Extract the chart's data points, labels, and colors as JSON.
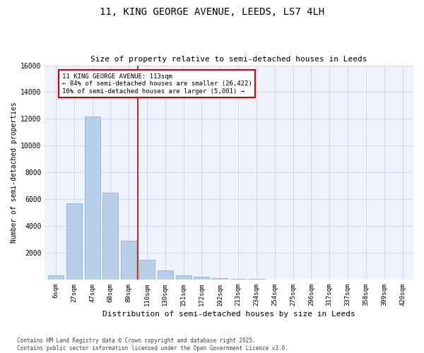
{
  "title_line1": "11, KING GEORGE AVENUE, LEEDS, LS7 4LH",
  "title_line2": "Size of property relative to semi-detached houses in Leeds",
  "xlabel": "Distribution of semi-detached houses by size in Leeds",
  "ylabel": "Number of semi-detached properties",
  "categories": [
    "6sqm",
    "27sqm",
    "47sqm",
    "68sqm",
    "89sqm",
    "110sqm",
    "130sqm",
    "151sqm",
    "172sqm",
    "192sqm",
    "213sqm",
    "234sqm",
    "254sqm",
    "275sqm",
    "296sqm",
    "317sqm",
    "337sqm",
    "358sqm",
    "399sqm",
    "420sqm"
  ],
  "values": [
    300,
    5700,
    12200,
    6500,
    2900,
    1500,
    700,
    300,
    200,
    100,
    50,
    30,
    10,
    5,
    2,
    0,
    0,
    0,
    0,
    0
  ],
  "bar_color": "#b8cfe8",
  "bar_edge_color": "#7aa8d0",
  "vline_color": "#cc0000",
  "annotation_text": "11 KING GEORGE AVENUE: 113sqm\n← 84% of semi-detached houses are smaller (26,422)\n16% of semi-detached houses are larger (5,001) →",
  "annotation_box_color": "#ffffff",
  "annotation_box_edge": "#cc0000",
  "ylim": [
    0,
    16000
  ],
  "yticks": [
    0,
    2000,
    4000,
    6000,
    8000,
    10000,
    12000,
    14000,
    16000
  ],
  "footer_line1": "Contains HM Land Registry data © Crown copyright and database right 2025.",
  "footer_line2": "Contains public sector information licensed under the Open Government Licence v3.0.",
  "bg_color": "#eef2fa",
  "grid_color": "#ccd4e8"
}
